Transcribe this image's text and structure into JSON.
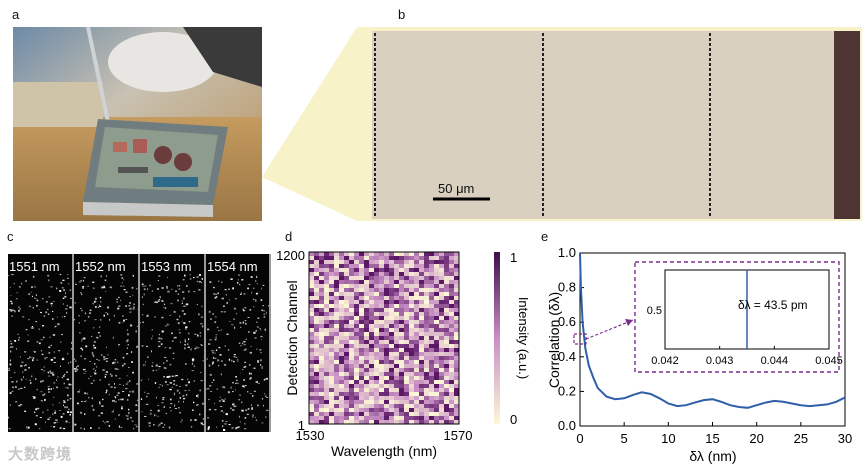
{
  "panels": {
    "a": {
      "label": "a"
    },
    "b": {
      "label": "b",
      "scale_bar": "50 μm"
    },
    "c": {
      "label": "c",
      "wavelengths": [
        "1551 nm",
        "1552 nm",
        "1553 nm",
        "1554 nm"
      ]
    },
    "d": {
      "label": "d"
    },
    "e": {
      "label": "e"
    }
  },
  "watermark": "大数跨境",
  "colors": {
    "accent": "#7b2d8e",
    "line": "#2f5fa8",
    "chip_bg": "#d8cfbe",
    "frame": "#f7f0c4"
  },
  "chart_data": [
    {
      "id": "d",
      "type": "heatmap",
      "title": "",
      "xlabel": "Wavelength (nm)",
      "ylabel": "Detection Channel",
      "x_ticks": [
        "1530",
        "1570"
      ],
      "y_ticks": [
        "1200",
        "1"
      ],
      "xlim": [
        1530,
        1570
      ],
      "ylim": [
        1,
        1200
      ],
      "colorbar": {
        "label": "Intensity (a.u.)",
        "ticks": [
          "1",
          "0"
        ],
        "range": [
          0,
          1
        ]
      }
    },
    {
      "id": "e",
      "type": "line",
      "xlabel": "δλ (nm)",
      "ylabel": "Correlation (δλ)",
      "xlim": [
        0,
        30
      ],
      "ylim": [
        0,
        1
      ],
      "x_ticks": [
        "0",
        "5",
        "10",
        "15",
        "20",
        "25",
        "30"
      ],
      "y_ticks": [
        "0.0",
        "0.2",
        "0.4",
        "0.6",
        "0.8",
        "1.0"
      ],
      "x": [
        0,
        0.1,
        0.3,
        0.6,
        1,
        1.5,
        2,
        3,
        4,
        5,
        6,
        7,
        8,
        9,
        10,
        11,
        12,
        13,
        14,
        15,
        16,
        17,
        18,
        19,
        20,
        21,
        22,
        23,
        24,
        25,
        26,
        27,
        28,
        29,
        30
      ],
      "y": [
        1.0,
        0.8,
        0.6,
        0.45,
        0.35,
        0.28,
        0.22,
        0.17,
        0.155,
        0.16,
        0.18,
        0.195,
        0.185,
        0.16,
        0.13,
        0.115,
        0.12,
        0.135,
        0.15,
        0.155,
        0.14,
        0.12,
        0.11,
        0.105,
        0.12,
        0.135,
        0.145,
        0.14,
        0.13,
        0.12,
        0.115,
        0.12,
        0.125,
        0.14,
        0.165
      ],
      "inset": {
        "xlim": [
          0.042,
          0.045
        ],
        "x_ticks": [
          "0.042",
          "0.043",
          "0.044",
          "0.045"
        ],
        "y_ticks": [
          "0.5"
        ],
        "annotation": "δλ = 43.5 pm",
        "marker_x": 0.0435
      }
    }
  ]
}
